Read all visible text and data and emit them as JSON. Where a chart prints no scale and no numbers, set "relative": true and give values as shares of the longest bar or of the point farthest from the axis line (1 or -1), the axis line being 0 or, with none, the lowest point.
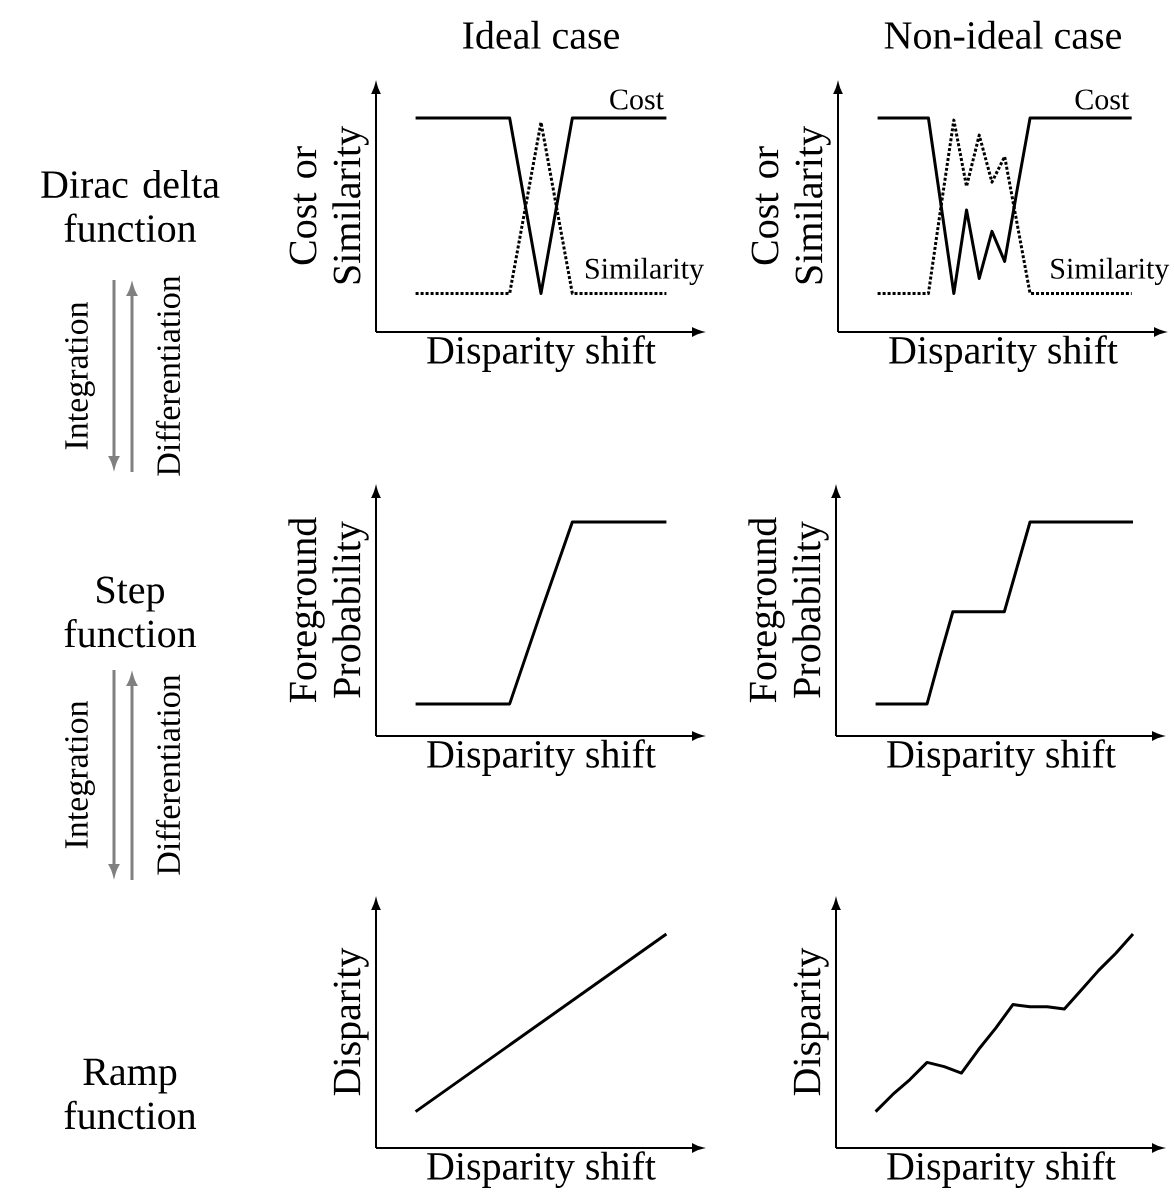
{
  "chart_data": [
    {
      "type": "line",
      "title": "Ideal case",
      "xlabel": "Disparity shift",
      "ylabel": "Cost or Similarity",
      "relative": true,
      "annotations": [
        "Dirac delta function",
        "Integration",
        "Differentiation"
      ],
      "categories": [
        null,
        null,
        null,
        null,
        null,
        null,
        null,
        null,
        null
      ],
      "series": [
        {
          "name": "Cost",
          "color": "#000000",
          "line_style": "solid",
          "values": [
            1,
            1,
            1,
            1,
            0.18,
            1,
            1,
            1,
            1
          ]
        },
        {
          "name": "Similarity",
          "color": "#000000",
          "line_style": "dotted",
          "values": [
            0.18,
            0.18,
            0.18,
            0.18,
            0.98,
            0.18,
            0.18,
            0.18,
            0.18
          ]
        }
      ]
    },
    {
      "type": "line",
      "title": "Non-ideal case",
      "xlabel": "Disparity shift",
      "ylabel": "Cost or Similarity",
      "relative": true,
      "categories": [
        null,
        null,
        null,
        null,
        null,
        null,
        null,
        null,
        null,
        null,
        null,
        null,
        null,
        null,
        null,
        null,
        null,
        null,
        null,
        null,
        null
      ],
      "series": [
        {
          "name": "Cost",
          "color": "#000000",
          "line_style": "solid",
          "values": [
            1,
            1,
            1,
            1,
            1,
            0.59,
            0.18,
            0.57,
            0.25,
            0.47,
            0.33,
            0.67,
            1,
            1,
            1,
            1,
            1,
            1,
            1,
            1,
            1
          ]
        },
        {
          "name": "Similarity",
          "color": "#000000",
          "line_style": "dotted",
          "values": [
            0.18,
            0.18,
            0.18,
            0.18,
            0.18,
            0.59,
            0.99,
            0.68,
            0.92,
            0.7,
            0.82,
            0.5,
            0.18,
            0.18,
            0.18,
            0.18,
            0.18,
            0.18,
            0.18,
            0.18,
            0.18
          ]
        }
      ]
    },
    {
      "type": "line",
      "xlabel": "Disparity shift",
      "ylabel": "Foreground Probability",
      "relative": true,
      "annotations": [
        "Step function",
        "Integration",
        "Differentiation"
      ],
      "categories": [
        null,
        null,
        null,
        null,
        null,
        null,
        null,
        null,
        null
      ],
      "series": [
        {
          "color": "#000000",
          "line_style": "solid",
          "values": [
            0.15,
            0.15,
            0.15,
            0.15,
            0.58,
            1,
            1,
            1,
            1
          ]
        }
      ]
    },
    {
      "type": "line",
      "xlabel": "Disparity shift",
      "ylabel": "Foreground Probability",
      "relative": true,
      "categories": [
        null,
        null,
        null,
        null,
        null,
        null,
        null,
        null,
        null,
        null,
        null,
        null,
        null,
        null,
        null,
        null,
        null,
        null,
        null,
        null,
        null
      ],
      "series": [
        {
          "color": "#000000",
          "line_style": "solid",
          "values": [
            0.15,
            0.15,
            0.15,
            0.15,
            0.15,
            0.37,
            0.58,
            0.58,
            0.58,
            0.58,
            0.58,
            0.79,
            1,
            1,
            1,
            1,
            1,
            1,
            1,
            1,
            1
          ]
        }
      ]
    },
    {
      "type": "line",
      "xlabel": "Disparity shift",
      "ylabel": "Disparity",
      "relative": true,
      "annotations": [
        "Ramp function"
      ],
      "categories": [
        null,
        null
      ],
      "series": [
        {
          "color": "#000000",
          "line_style": "solid",
          "values": [
            0.17,
            1
          ]
        }
      ]
    },
    {
      "type": "line",
      "xlabel": "Disparity shift",
      "ylabel": "Disparity",
      "relative": true,
      "categories": [
        null,
        null,
        null,
        null,
        null,
        null,
        null,
        null,
        null,
        null,
        null,
        null,
        null,
        null,
        null,
        null
      ],
      "series": [
        {
          "color": "#000000",
          "line_style": "solid",
          "values": [
            0.17,
            0.25,
            0.32,
            0.4,
            0.38,
            0.35,
            0.46,
            0.56,
            0.67,
            0.66,
            0.66,
            0.65,
            0.74,
            0.83,
            0.91,
            1
          ]
        }
      ]
    }
  ]
}
